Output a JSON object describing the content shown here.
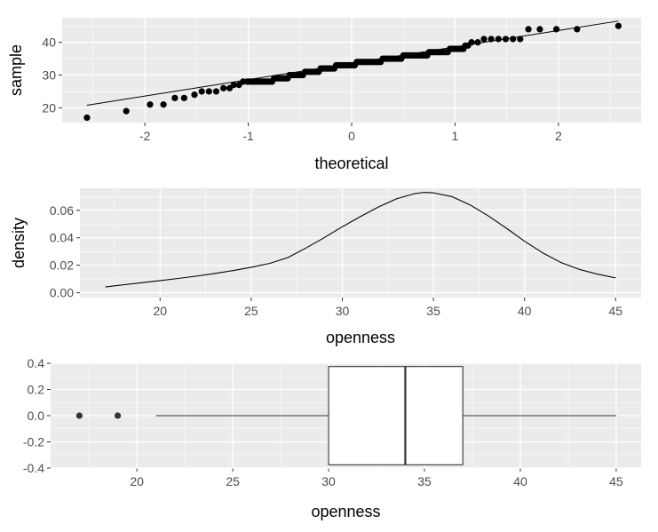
{
  "chart_data": [
    {
      "type": "scatter",
      "subtype": "qq-plot",
      "xlabel": "theoretical",
      "ylabel": "sample",
      "xlim": [
        -2.8,
        2.8
      ],
      "ylim": [
        15.5,
        47.5
      ],
      "x_ticks": [
        -2,
        -1,
        0,
        1,
        2
      ],
      "y_ticks": [
        20,
        30,
        40
      ],
      "grid": true,
      "points": [
        {
          "x": -2.56,
          "y": 17
        },
        {
          "x": -2.18,
          "y": 19
        },
        {
          "x": -1.95,
          "y": 21
        },
        {
          "x": -1.82,
          "y": 21
        },
        {
          "x": -1.71,
          "y": 23
        },
        {
          "x": -1.62,
          "y": 23
        },
        {
          "x": -1.52,
          "y": 24
        },
        {
          "x": -1.45,
          "y": 25
        },
        {
          "x": -1.38,
          "y": 25
        },
        {
          "x": -1.31,
          "y": 25
        },
        {
          "x": -1.24,
          "y": 26
        },
        {
          "x": -1.18,
          "y": 26
        },
        {
          "x": -1.14,
          "y": 27
        },
        {
          "x": -1.09,
          "y": 27
        },
        {
          "x": -1.05,
          "y": 28
        },
        {
          "x": -1.01,
          "y": 28
        },
        {
          "x": 1.16,
          "y": 40
        },
        {
          "x": 1.22,
          "y": 40
        },
        {
          "x": 1.28,
          "y": 41
        },
        {
          "x": 1.35,
          "y": 41
        },
        {
          "x": 1.42,
          "y": 41
        },
        {
          "x": 1.49,
          "y": 41
        },
        {
          "x": 1.56,
          "y": 41
        },
        {
          "x": 1.63,
          "y": 41
        },
        {
          "x": 1.71,
          "y": 44
        },
        {
          "x": 1.82,
          "y": 44
        },
        {
          "x": 1.98,
          "y": 44
        },
        {
          "x": 2.18,
          "y": 44
        },
        {
          "x": 2.58,
          "y": 45
        }
      ],
      "dense_band": {
        "x_start": -1.0,
        "x_end": 1.15,
        "steps": [
          {
            "x": -1.0,
            "y": 28
          },
          {
            "x": -0.75,
            "y": 29
          },
          {
            "x": -0.6,
            "y": 30
          },
          {
            "x": -0.45,
            "y": 31
          },
          {
            "x": -0.3,
            "y": 32
          },
          {
            "x": -0.15,
            "y": 33
          },
          {
            "x": 0.05,
            "y": 34
          },
          {
            "x": 0.3,
            "y": 35
          },
          {
            "x": 0.5,
            "y": 36
          },
          {
            "x": 0.75,
            "y": 37
          },
          {
            "x": 0.95,
            "y": 38
          },
          {
            "x": 1.1,
            "y": 39
          }
        ]
      },
      "reference_line": {
        "intercept": 33.6,
        "slope": 5.0
      }
    },
    {
      "type": "line",
      "subtype": "density",
      "xlabel": "openness",
      "ylabel": "density",
      "xlim": [
        15.6,
        46.4
      ],
      "ylim": [
        -0.0035,
        0.076
      ],
      "x_ticks": [
        20,
        25,
        30,
        35,
        40,
        45
      ],
      "y_ticks": [
        0.0,
        0.02,
        0.04,
        0.06
      ],
      "y_tick_labels": [
        "0.00",
        "0.02",
        "0.04",
        "0.06"
      ],
      "grid": true,
      "x": [
        17,
        18,
        19,
        20,
        21,
        22,
        23,
        24,
        25,
        26,
        27,
        28,
        29,
        30,
        31,
        32,
        33,
        34,
        34.5,
        35,
        36,
        37,
        38,
        39,
        40,
        41,
        42,
        43,
        44,
        45
      ],
      "y": [
        0.0042,
        0.0058,
        0.0073,
        0.0088,
        0.0104,
        0.0121,
        0.014,
        0.0161,
        0.0185,
        0.0213,
        0.0255,
        0.0325,
        0.04,
        0.048,
        0.0555,
        0.0625,
        0.0685,
        0.0722,
        0.073,
        0.0727,
        0.07,
        0.064,
        0.056,
        0.047,
        0.0375,
        0.029,
        0.022,
        0.017,
        0.0135,
        0.0108
      ]
    },
    {
      "type": "box",
      "xlabel": "openness",
      "ylabel": "",
      "xlim": [
        15.5,
        46.3
      ],
      "ylim": [
        -0.4,
        0.4
      ],
      "x_ticks": [
        20,
        25,
        30,
        35,
        40,
        45
      ],
      "y_ticks": [
        -0.4,
        -0.2,
        0.0,
        0.2,
        0.4
      ],
      "y_tick_labels": [
        "-0.4",
        "-0.2",
        "0.0",
        "0.2",
        "0.4"
      ],
      "grid": true,
      "whisker_low": 21,
      "q1": 30,
      "median": 34,
      "q3": 37,
      "whisker_high": 45,
      "outliers": [
        17,
        19
      ],
      "box_halfwidth": 0.375
    }
  ]
}
